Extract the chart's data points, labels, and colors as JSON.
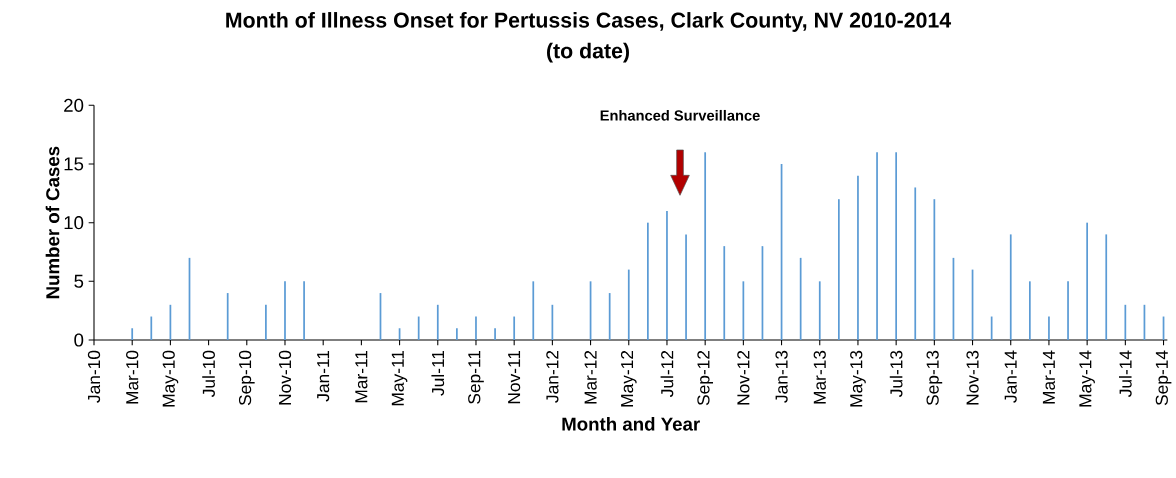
{
  "chart_data": {
    "type": "bar",
    "title": "Month of Illness Onset for Pertussis Cases, Clark County, NV  2010-2014",
    "subtitle": "(to date)",
    "xlabel": "Month and Year",
    "ylabel": "Number of Cases",
    "categories": [
      "Jan-10",
      null,
      "Mar-10",
      null,
      "May-10",
      null,
      "Jul-10",
      null,
      "Sep-10",
      null,
      "Nov-10",
      null,
      "Jan-11",
      null,
      "Mar-11",
      null,
      "May-11",
      null,
      "Jul-11",
      null,
      "Sep-11",
      null,
      "Nov-11",
      null,
      "Jan-12",
      null,
      "Mar-12",
      null,
      "May-12",
      null,
      "Jul-12",
      null,
      "Sep-12",
      null,
      "Nov-12",
      null,
      "Jan-13",
      null,
      "Mar-13",
      null,
      "May-13",
      null,
      "Jul-13",
      null,
      "Sep-13",
      null,
      "Nov-13",
      null,
      "Jan-14",
      null,
      "Mar-14",
      null,
      "May-14",
      null,
      "Jul-14",
      null,
      "Sep-14"
    ],
    "values": [
      0,
      0,
      1,
      2,
      3,
      7,
      0,
      4,
      0,
      3,
      5,
      5,
      0,
      0,
      0,
      4,
      1,
      2,
      3,
      1,
      2,
      1,
      2,
      5,
      3,
      0,
      5,
      4,
      6,
      10,
      11,
      9,
      16,
      8,
      5,
      8,
      15,
      7,
      5,
      12,
      14,
      16,
      16,
      13,
      12,
      7,
      6,
      2,
      9,
      5,
      2,
      5,
      10,
      9,
      3,
      3,
      2
    ],
    "color": "#5b9bd5",
    "ylim": [
      0,
      20
    ],
    "yticks": [
      0,
      5,
      10,
      15,
      20
    ],
    "grid": false,
    "annotations": [
      "Enhanced Surveillance"
    ]
  }
}
